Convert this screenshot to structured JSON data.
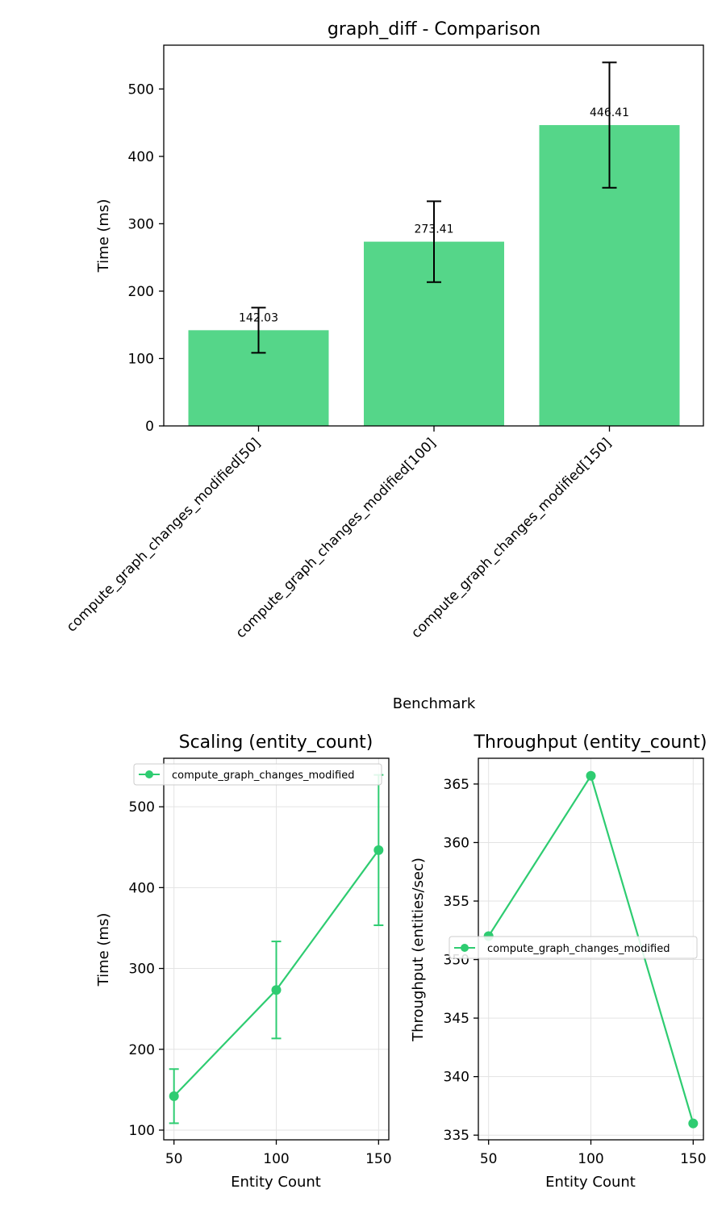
{
  "colors": {
    "series": "#2ecc71",
    "bar": "#55d689",
    "errorbar": "#000000"
  },
  "chart_data": [
    {
      "type": "bar",
      "title": "graph_diff - Comparison",
      "xlabel": "Benchmark",
      "ylabel": "Time (ms)",
      "categories": [
        "compute_graph_changes_modified[50]",
        "compute_graph_changes_modified[100]",
        "compute_graph_changes_modified[150]"
      ],
      "values": [
        142.03,
        273.41,
        446.41
      ],
      "value_labels": [
        "142.03",
        "273.41",
        "446.41"
      ],
      "errors": [
        33.5,
        60.0,
        93.0
      ],
      "ylim": [
        0,
        565
      ],
      "yticks": [
        0,
        100,
        200,
        300,
        400,
        500
      ],
      "ytick_labels": [
        "0",
        "100",
        "200",
        "300",
        "400",
        "500"
      ],
      "grid": false
    },
    {
      "type": "line",
      "title": "Scaling (entity_count)",
      "xlabel": "Entity Count",
      "ylabel": "Time (ms)",
      "series": [
        {
          "name": "compute_graph_changes_modified",
          "x": [
            50,
            100,
            150
          ],
          "y": [
            142.03,
            273.41,
            446.41
          ],
          "errors": [
            33.5,
            60.0,
            93.0
          ]
        }
      ],
      "xlim": [
        45,
        155
      ],
      "ylim": [
        88,
        560
      ],
      "xticks": [
        50,
        100,
        150
      ],
      "xtick_labels": [
        "50",
        "100",
        "150"
      ],
      "yticks": [
        100,
        200,
        300,
        400,
        500
      ],
      "ytick_labels": [
        "100",
        "200",
        "300",
        "400",
        "500"
      ],
      "legend": "top-right",
      "grid": true
    },
    {
      "type": "line",
      "title": "Throughput (entity_count)",
      "xlabel": "Entity Count",
      "ylabel": "Throughput (entities/sec)",
      "series": [
        {
          "name": "compute_graph_changes_modified",
          "x": [
            50,
            100,
            150
          ],
          "y": [
            352.0,
            365.7,
            336.0
          ]
        }
      ],
      "xlim": [
        45,
        155
      ],
      "ylim": [
        334.6,
        367.2
      ],
      "xticks": [
        50,
        100,
        150
      ],
      "xtick_labels": [
        "50",
        "100",
        "150"
      ],
      "yticks": [
        335,
        340,
        345,
        350,
        355,
        360,
        365
      ],
      "ytick_labels": [
        "335",
        "340",
        "345",
        "350",
        "355",
        "360",
        "365"
      ],
      "legend": "center",
      "grid": true
    }
  ]
}
